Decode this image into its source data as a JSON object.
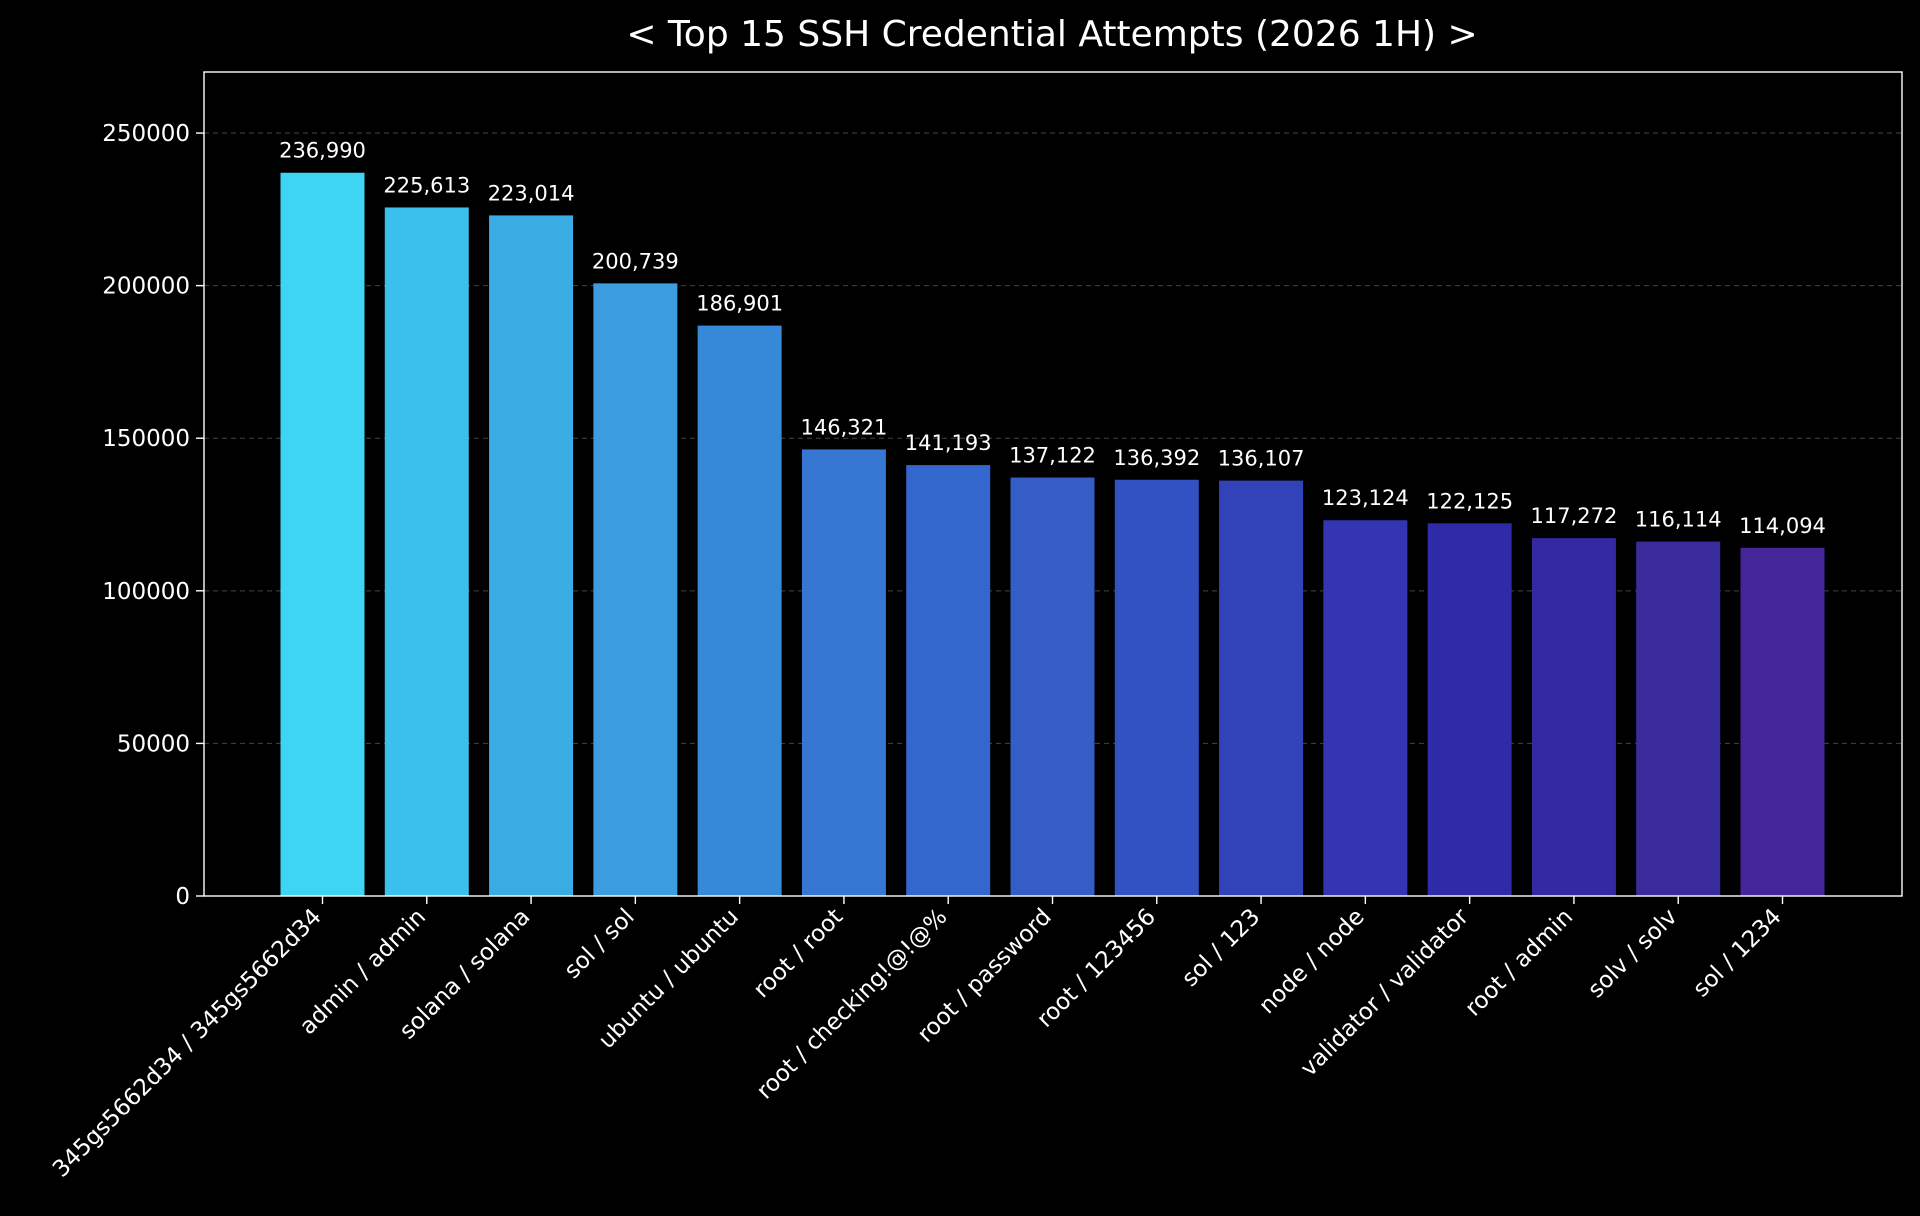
{
  "chart_data": {
    "type": "bar",
    "title": "< Top 15 SSH Credential Attempts (2026 1H) >",
    "xlabel": "",
    "ylabel": "",
    "ylim": [
      0,
      270000
    ],
    "yticks": [
      0,
      50000,
      100000,
      150000,
      200000,
      250000
    ],
    "ytick_labels": [
      "0",
      "50000",
      "100000",
      "150000",
      "200000",
      "250000"
    ],
    "grid": "horizontal dashed",
    "background": "#000000",
    "categories": [
      "345gs5662d34 / 345gs5662d34",
      "admin / admin",
      "solana / solana",
      "sol / sol",
      "ubuntu / ubuntu",
      "root / root",
      "root / checking!@!@%",
      "root / password",
      "root / 123456",
      "sol / 123",
      "node / node",
      "validator / validator",
      "root / admin",
      "solv / solv",
      "sol / 1234"
    ],
    "values": [
      236990,
      225613,
      223014,
      200739,
      186901,
      146321,
      141193,
      137122,
      136392,
      136107,
      123124,
      122125,
      117272,
      116114,
      114094
    ],
    "value_labels": [
      "236,990",
      "225,613",
      "223,014",
      "200,739",
      "186,901",
      "146,321",
      "141,193",
      "137,122",
      "136,392",
      "136,107",
      "123,124",
      "122,125",
      "117,272",
      "116,114",
      "114,094"
    ],
    "colors": [
      "#3dd5f3",
      "#3bbfec",
      "#39ace4",
      "#3c9ce0",
      "#3688d9",
      "#3577d2",
      "#3467cd",
      "#345dc7",
      "#3251c2",
      "#3242b9",
      "#3335b2",
      "#2f2aa8",
      "#3429a1",
      "#3a2b9c",
      "#44259a"
    ]
  }
}
